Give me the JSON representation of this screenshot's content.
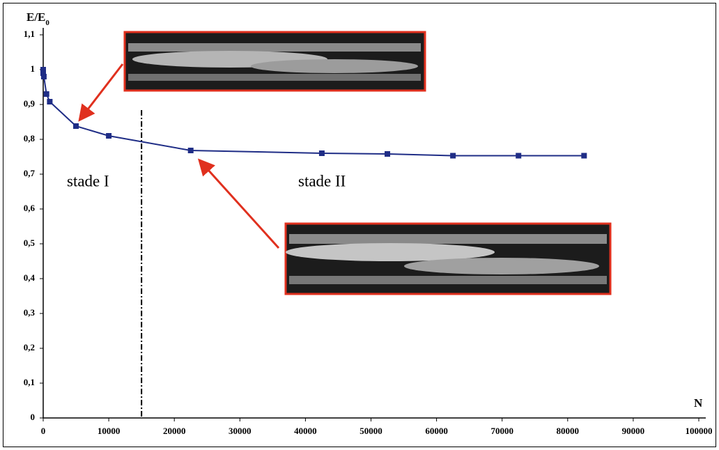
{
  "chart_data": {
    "type": "line",
    "y_label": {
      "main": "E/E",
      "subscript": "0"
    },
    "x_label": "N",
    "annotations": [
      "stade I",
      "stade II"
    ],
    "stage_boundary": 15000,
    "x": [
      0,
      0,
      100,
      500,
      1000,
      5000,
      10000,
      22500,
      42500,
      52500,
      62500,
      72500,
      82500
    ],
    "series": [
      {
        "color": "#1f2d86",
        "values": [
          1.0,
          0.99,
          0.98,
          0.93,
          0.908,
          0.838,
          0.81,
          0.768,
          0.76,
          0.758,
          0.753,
          0.753,
          0.753
        ]
      }
    ],
    "xlim": [
      0,
      100000
    ],
    "xticks": [
      0,
      10000,
      20000,
      30000,
      40000,
      50000,
      60000,
      70000,
      80000,
      90000,
      100000
    ],
    "ylim": [
      0,
      1.1
    ],
    "yticks": [
      0,
      {
        "value": 0.1,
        "label": "0,1"
      },
      {
        "value": 0.2,
        "label": "0,2"
      },
      {
        "value": 0.3,
        "label": "0,3"
      },
      {
        "value": 0.4,
        "label": "0,4"
      },
      {
        "value": 0.5,
        "label": "0,5"
      },
      {
        "value": 0.6,
        "label": "0,6"
      },
      {
        "value": 0.7,
        "label": "0,7"
      },
      {
        "value": 0.8,
        "label": "0,8"
      },
      {
        "value": 0.9,
        "label": "0,9"
      },
      1,
      {
        "value": 1.1,
        "label": "1,1"
      }
    ]
  }
}
